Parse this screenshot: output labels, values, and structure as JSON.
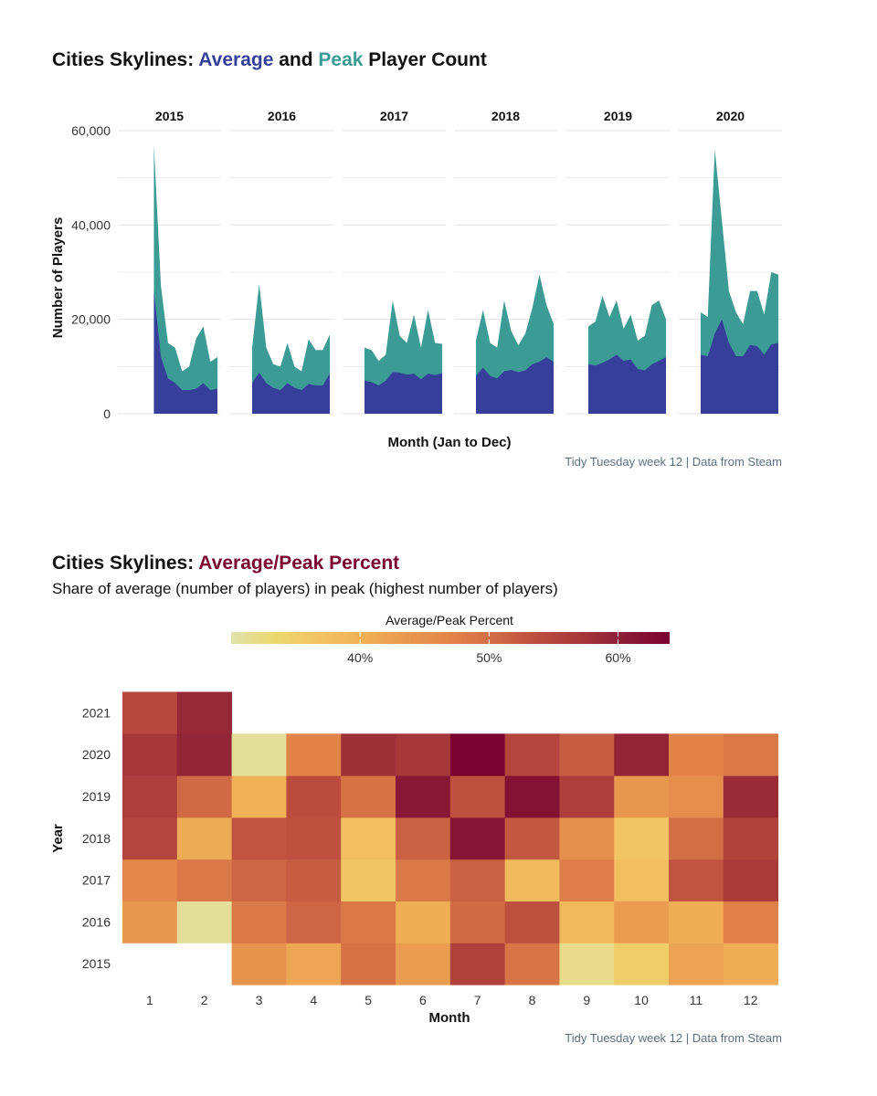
{
  "colors": {
    "average": "#36409b",
    "peak": "#3c9b94",
    "heat_title": "#7a0231",
    "grid": "#e6e6e6",
    "caption": "#5b6f82",
    "heat_scale": [
      "#dfe2ad",
      "#ecd86f",
      "#f2c363",
      "#f0b056",
      "#e99950",
      "#e2844a",
      "#d06b45",
      "#bb4d3e",
      "#a43639",
      "#8a1b36",
      "#7a0231"
    ]
  },
  "chart_data": [
    {
      "type": "area",
      "title": {
        "prefix": "Cities Skylines: ",
        "average_word": "Average",
        "and_word": " and ",
        "peak_word": "Peak",
        "suffix": " Player Count"
      },
      "xlabel": "Month (Jan to Dec)",
      "ylabel": "Number of Players",
      "ylim": [
        0,
        60000
      ],
      "y_ticks": [
        0,
        20000,
        40000,
        60000
      ],
      "y_tick_labels": [
        "0",
        "20,000",
        "40,000",
        "60,000"
      ],
      "grid": true,
      "facets": [
        {
          "label": "2015",
          "start_month": 3,
          "peak": [
            57000,
            27000,
            15000,
            14000,
            9000,
            10000,
            16000,
            18500,
            11000,
            12000
          ],
          "average": [
            26000,
            12000,
            7500,
            6500,
            5000,
            5000,
            5300,
            6500,
            5000,
            5300
          ]
        },
        {
          "label": "2016",
          "start_month": 1,
          "peak": [
            14000,
            27500,
            14000,
            10500,
            10000,
            15000,
            10000,
            9000,
            15800,
            13500,
            13500,
            16800
          ],
          "average": [
            6500,
            8700,
            6500,
            5500,
            5000,
            6500,
            5500,
            5000,
            6300,
            6000,
            6000,
            8500
          ]
        },
        {
          "label": "2017",
          "start_month": 1,
          "peak": [
            14000,
            13500,
            11200,
            12500,
            24000,
            16500,
            15000,
            21000,
            14000,
            22000,
            15000,
            14800
          ],
          "average": [
            7000,
            6700,
            6000,
            7000,
            8800,
            8700,
            8300,
            8500,
            7300,
            8500,
            8200,
            8600
          ]
        },
        {
          "label": "2018",
          "start_month": 1,
          "peak": [
            15500,
            22000,
            15000,
            14000,
            24000,
            17500,
            14500,
            17000,
            22500,
            29500,
            23000,
            19000
          ],
          "average": [
            8000,
            9800,
            8000,
            7500,
            9000,
            9300,
            8800,
            9200,
            10500,
            11000,
            12000,
            11000
          ]
        },
        {
          "label": "2019",
          "start_month": 1,
          "peak": [
            18500,
            19500,
            25000,
            20500,
            24000,
            18000,
            21000,
            15500,
            16500,
            23000,
            24000,
            20000
          ],
          "average": [
            10500,
            10200,
            10800,
            11500,
            12500,
            11200,
            11500,
            9500,
            9200,
            10500,
            11200,
            12000
          ]
        },
        {
          "label": "2020",
          "start_month": 1,
          "peak": [
            21500,
            20500,
            56000,
            41000,
            26000,
            21500,
            19000,
            26000,
            26000,
            21000,
            30000,
            29500
          ],
          "average": [
            12500,
            12200,
            17000,
            20000,
            15000,
            12200,
            12200,
            14600,
            14300,
            12500,
            14700,
            15000
          ]
        }
      ],
      "caption": "Tidy Tuesday week 12 | Data from Steam"
    },
    {
      "type": "heatmap",
      "title": {
        "prefix": "Cities Skylines: ",
        "highlight": "Average/Peak Percent"
      },
      "subtitle": "Share of average (number of players) in peak (highest number of players)",
      "legend_title": "Average/Peak Percent",
      "legend_placement": "top",
      "value_range": [
        30,
        64
      ],
      "legend_ticks": [
        40,
        50,
        60
      ],
      "legend_tick_labels": [
        "40%",
        "50%",
        "60%"
      ],
      "xlabel": "Month",
      "ylabel": "Year",
      "x": [
        "1",
        "2",
        "3",
        "4",
        "5",
        "6",
        "7",
        "8",
        "9",
        "10",
        "11",
        "12"
      ],
      "y": [
        "2015",
        "2016",
        "2017",
        "2018",
        "2019",
        "2020",
        "2021"
      ],
      "values": {
        "2015": [
          null,
          null,
          44.5,
          41.5,
          49.5,
          43,
          55.5,
          49,
          32,
          35,
          42,
          40.5
        ],
        "2016": [
          44,
          31,
          48.5,
          51,
          48.5,
          40.5,
          50.5,
          53.5,
          38.5,
          43,
          40.5,
          47.5
        ],
        "2017": [
          46.5,
          48.5,
          51,
          52,
          36.5,
          48.5,
          51.5,
          38.5,
          48,
          37.5,
          53,
          56.5
        ],
        "2018": [
          55,
          41,
          53,
          53.5,
          37.5,
          51.5,
          61.5,
          52.5,
          45,
          36.5,
          50,
          55.5
        ],
        "2019": [
          56,
          50.5,
          40,
          54,
          49.5,
          61,
          53.5,
          62,
          56,
          44,
          45.5,
          58.5
        ],
        "2020": [
          57,
          59.5,
          31,
          47,
          58,
          57,
          64,
          55,
          52,
          59.5,
          47,
          48.5
        ],
        "2021": [
          54.5,
          59,
          null,
          null,
          null,
          null,
          null,
          null,
          null,
          null,
          null,
          null
        ]
      },
      "caption": "Tidy Tuesday week 12 | Data from Steam"
    }
  ]
}
